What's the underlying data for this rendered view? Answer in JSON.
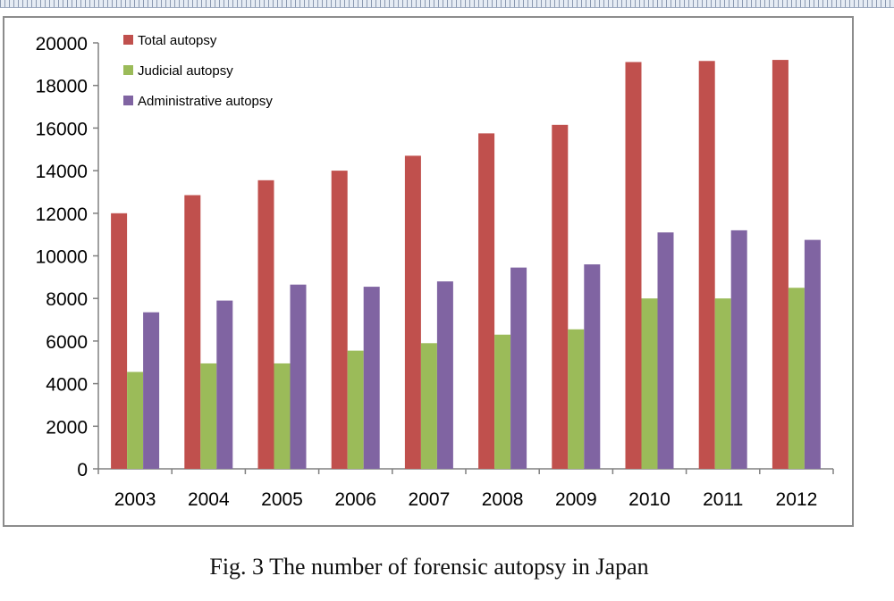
{
  "caption": "Fig. 3 The number of forensic autopsy in Japan",
  "chart_data": {
    "type": "bar",
    "title": "",
    "xlabel": "",
    "ylabel": "",
    "categories": [
      "2003",
      "2004",
      "2005",
      "2006",
      "2007",
      "2008",
      "2009",
      "2010",
      "2011",
      "2012"
    ],
    "ylim": [
      0,
      20000
    ],
    "yticks": [
      0,
      2000,
      4000,
      6000,
      8000,
      10000,
      12000,
      14000,
      16000,
      18000,
      20000
    ],
    "grid": false,
    "legend_position": "top-left",
    "series": [
      {
        "name": "Total autopsy",
        "color": "#c0504d",
        "values": [
          12000,
          12850,
          13550,
          14000,
          14700,
          15750,
          16150,
          19100,
          19150,
          19200
        ]
      },
      {
        "name": "Judicial autopsy",
        "color": "#9bbb59",
        "values": [
          4550,
          4950,
          4950,
          5550,
          5900,
          6300,
          6550,
          8000,
          8000,
          8500
        ]
      },
      {
        "name": "Administrative autopsy",
        "color": "#8064a2",
        "values": [
          7350,
          7900,
          8650,
          8550,
          8800,
          9450,
          9600,
          11100,
          11200,
          10750
        ]
      }
    ]
  }
}
